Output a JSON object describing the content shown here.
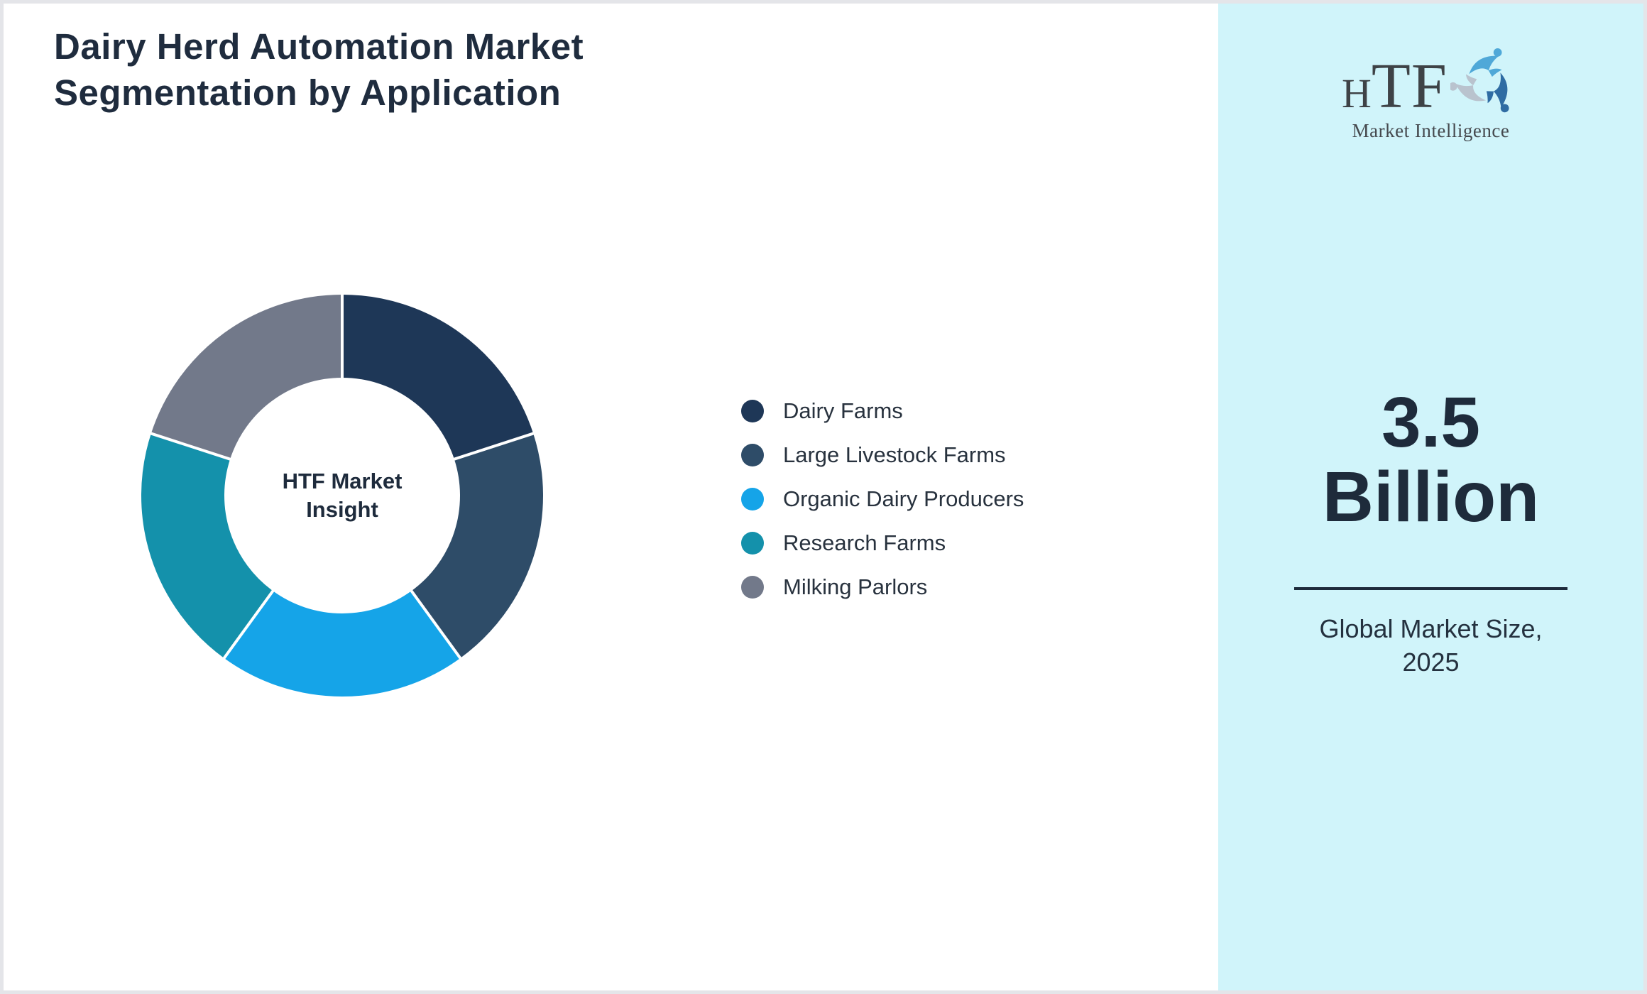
{
  "page": {
    "title_line1": "Dairy Herd Automation Market",
    "title_line2": "Segmentation by Application",
    "background_color": "#ffffff",
    "border_color": "#e4e5e9"
  },
  "chart_data": {
    "type": "pie",
    "subtype": "donut",
    "title": "Dairy Herd Automation Market Segmentation by Application",
    "center_label": "HTF Market Insight",
    "categories": [
      "Dairy Farms",
      "Large Livestock Farms",
      "Organic Dairy Producers",
      "Research Farms",
      "Milking Parlors"
    ],
    "values": [
      20,
      20,
      20,
      20,
      20
    ],
    "unit": "percent-share",
    "colors": [
      "#1E3757",
      "#2E4C68",
      "#15A4E8",
      "#1491AB",
      "#72798A"
    ],
    "start_angle_deg": 0,
    "direction": "clockwise",
    "legend_position": "right",
    "slice_separator_color": "#ffffff"
  },
  "sidebar": {
    "background_color": "#D0F4FA",
    "logo": {
      "brand_h": "H",
      "brand_tf": "TF",
      "tagline": "Market Intelligence",
      "icon": "swirl-people-icon",
      "icon_colors": [
        "#4FA8D8",
        "#B9C3CE",
        "#2F6CA3"
      ]
    },
    "market_size_value": "3.5 Billion",
    "market_size_caption": "Global Market Size, 2025"
  }
}
